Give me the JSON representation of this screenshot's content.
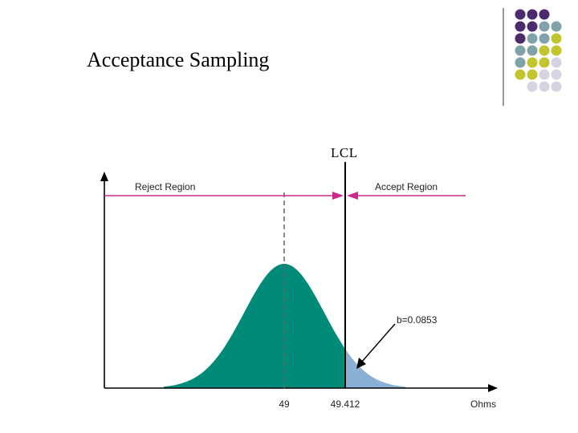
{
  "slide": {
    "title": "Acceptance Sampling",
    "lcl_label": "LCL"
  },
  "figure": {
    "reject_label": "Reject Region",
    "accept_label": "Accept Region",
    "b_label": "b=0.0853",
    "mean_tick": "49",
    "lcl_tick": "49.412",
    "axis_unit": "Ohms"
  },
  "colors": {
    "accent_purple": "#4b2a6e",
    "accent_teal": "#7fa3a8",
    "accent_olive": "#c2c52e",
    "accent_lavender": "#d4d4e2",
    "curve_fill": "#008a78",
    "tail_fill": "#8ab0d6",
    "arrow_magenta": "#cc2a8a"
  }
}
